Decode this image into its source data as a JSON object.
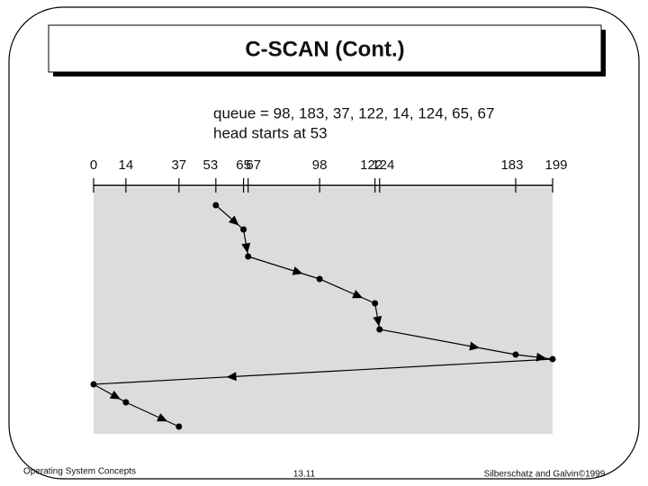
{
  "slide": {
    "title": "C-SCAN (Cont.)",
    "footer_left": "Operating System Concepts",
    "footer_center": "13.11",
    "footer_right": "Silberschatz and Galvin©1999"
  },
  "diagram": {
    "queue_label": "queue = 98, 183, 37, 122, 14, 124, 65, 67",
    "head_label": "head starts at 53",
    "xlim": [
      0,
      199
    ],
    "xticks": [
      0,
      14,
      37,
      53,
      65,
      67,
      98,
      122,
      124,
      183,
      199
    ],
    "path": [
      53,
      65,
      67,
      98,
      122,
      124,
      183,
      199,
      0,
      14,
      37
    ]
  }
}
